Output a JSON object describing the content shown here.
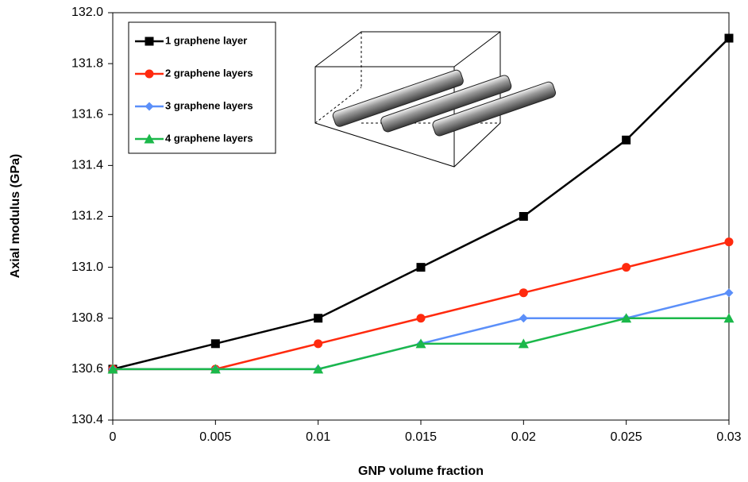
{
  "chart_data": {
    "type": "line",
    "x_label": "GNP volume fraction",
    "y_label": "Axial modulus (GPa)",
    "x": [
      0,
      0.005,
      0.01,
      0.015,
      0.02,
      0.025,
      0.03
    ],
    "xlim": [
      0,
      0.03
    ],
    "xticks": [
      0,
      0.005,
      0.01,
      0.015,
      0.02,
      0.025,
      0.03
    ],
    "ylim": [
      130.4,
      132
    ],
    "yticks": [
      130.4,
      130.6,
      130.8,
      {
        "value": 131,
        "label": "131.0"
      },
      131.2,
      131.4,
      131.6,
      131.8,
      {
        "value": 132,
        "label": "132.0"
      }
    ],
    "grid": false,
    "legend": "upper left",
    "series": [
      {
        "name": "1 graphene layer",
        "color": "#000000",
        "marker": "square",
        "values": [
          130.6,
          130.7,
          130.8,
          131.0,
          131.2,
          131.5,
          131.9
        ]
      },
      {
        "name": "2 graphene layers",
        "color": "#ff2a0e",
        "marker": "circle",
        "values": [
          130.6,
          130.6,
          130.7,
          130.8,
          130.9,
          131.0,
          131.1
        ]
      },
      {
        "name": "3 graphene layers",
        "color": "#5b8ff9",
        "marker": "diamond",
        "values": [
          130.6,
          130.6,
          130.6,
          130.7,
          130.8,
          130.8,
          130.9
        ]
      },
      {
        "name": "4 graphene layers",
        "color": "#1bb84a",
        "marker": "triangle",
        "values": [
          130.6,
          130.6,
          130.6,
          130.7,
          130.7,
          130.8,
          130.8
        ]
      }
    ]
  }
}
